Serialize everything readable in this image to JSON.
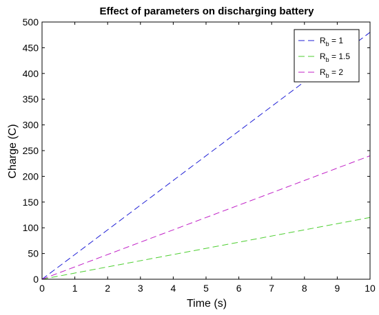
{
  "chart_data": {
    "type": "line",
    "title": "Effect of parameters on discharging battery",
    "xlabel": "Time (s)",
    "ylabel": "Charge (C)",
    "xlim": [
      0,
      10
    ],
    "ylim": [
      0,
      500
    ],
    "xticks": [
      0,
      1,
      2,
      3,
      4,
      5,
      6,
      7,
      8,
      9,
      10
    ],
    "yticks": [
      0,
      50,
      100,
      150,
      200,
      250,
      300,
      350,
      400,
      450,
      500
    ],
    "grid": false,
    "legend_position": "top-right",
    "line_style": "dashed",
    "series": [
      {
        "name": "R_b = 1",
        "legend_main": "R",
        "legend_sub": "b",
        "legend_rest": " = 1",
        "color": "#1f1fd6",
        "x": [
          0,
          10
        ],
        "y": [
          0,
          480
        ]
      },
      {
        "name": "R_b = 1.5",
        "legend_main": "R",
        "legend_sub": "b",
        "legend_rest": " = 1.5",
        "color": "#4cce2f",
        "x": [
          0,
          10
        ],
        "y": [
          0,
          120
        ]
      },
      {
        "name": "R_b = 2",
        "legend_main": "R",
        "legend_sub": "b",
        "legend_rest": " = 2",
        "color": "#c01fc6",
        "x": [
          0,
          10
        ],
        "y": [
          0,
          240
        ]
      }
    ]
  }
}
